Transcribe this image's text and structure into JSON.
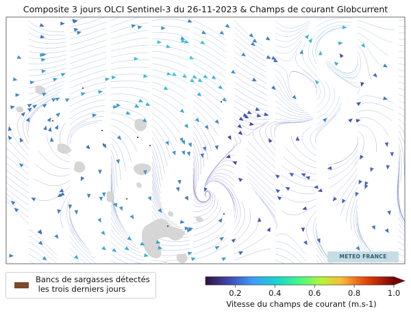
{
  "title": "Composite 3 jours OLCI Sentinel-3 du 26-11-2023 & Champs de courant Globcurrent",
  "legend": {
    "label_line1": "Bancs de sargasses détectés",
    "label_line2": " les trois derniers jours",
    "swatch_color": "#7a4a2c"
  },
  "colorbar": {
    "label": "Vitesse du champs de courant (m.s-1)",
    "ticks": [
      "0.2",
      "0.4",
      "0.6",
      "0.8",
      "1.0"
    ],
    "tick_values": [
      0.2,
      0.4,
      0.6,
      0.8,
      1.0
    ],
    "range": [
      0.05,
      1.0
    ],
    "colormap": "turbo",
    "extend": "max"
  },
  "watermark": "METEO FRANCE",
  "colors": {
    "land": "#d5d5d5",
    "frame": "#444444",
    "streamline_slow": "#3a2d8f",
    "streamline_fast": "#2ec8d8"
  }
}
